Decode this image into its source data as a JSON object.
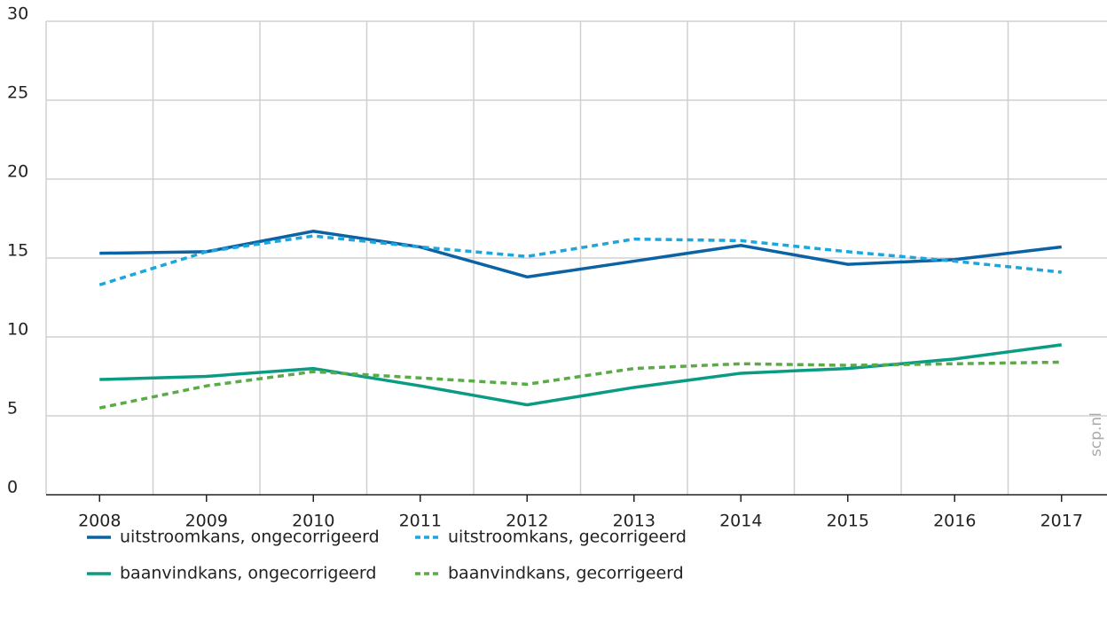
{
  "chart_data": {
    "type": "line",
    "categories": [
      "2008",
      "2009",
      "2010",
      "2011",
      "2012",
      "2013",
      "2014",
      "2015",
      "2016",
      "2017"
    ],
    "series": [
      {
        "name": "uitstroomkans, ongecorrigeerd",
        "color": "#0b62a4",
        "dashed": false,
        "values": [
          15.3,
          15.4,
          16.7,
          15.7,
          13.8,
          14.8,
          15.8,
          14.6,
          14.9,
          15.7
        ]
      },
      {
        "name": "uitstroomkans, gecorrigeerd",
        "color": "#1ba6e0",
        "dashed": true,
        "values": [
          13.3,
          15.4,
          16.4,
          15.7,
          15.1,
          16.2,
          16.1,
          15.4,
          14.8,
          14.1
        ]
      },
      {
        "name": "baanvindkans, ongecorrigeerd",
        "color": "#0a9c82",
        "dashed": false,
        "values": [
          7.3,
          7.5,
          8.0,
          6.9,
          5.7,
          6.8,
          7.7,
          8.0,
          8.6,
          9.5
        ]
      },
      {
        "name": "baanvindkans, gecorrigeerd",
        "color": "#5aab45",
        "dashed": true,
        "values": [
          5.5,
          6.9,
          7.8,
          7.4,
          7.0,
          8.0,
          8.3,
          8.2,
          8.3,
          8.4
        ]
      }
    ],
    "ylim": [
      0,
      30
    ],
    "yticks": [
      0,
      5,
      10,
      15,
      20,
      25,
      30
    ],
    "grid": true,
    "legend": "bottom",
    "watermark": "scp.nl"
  }
}
